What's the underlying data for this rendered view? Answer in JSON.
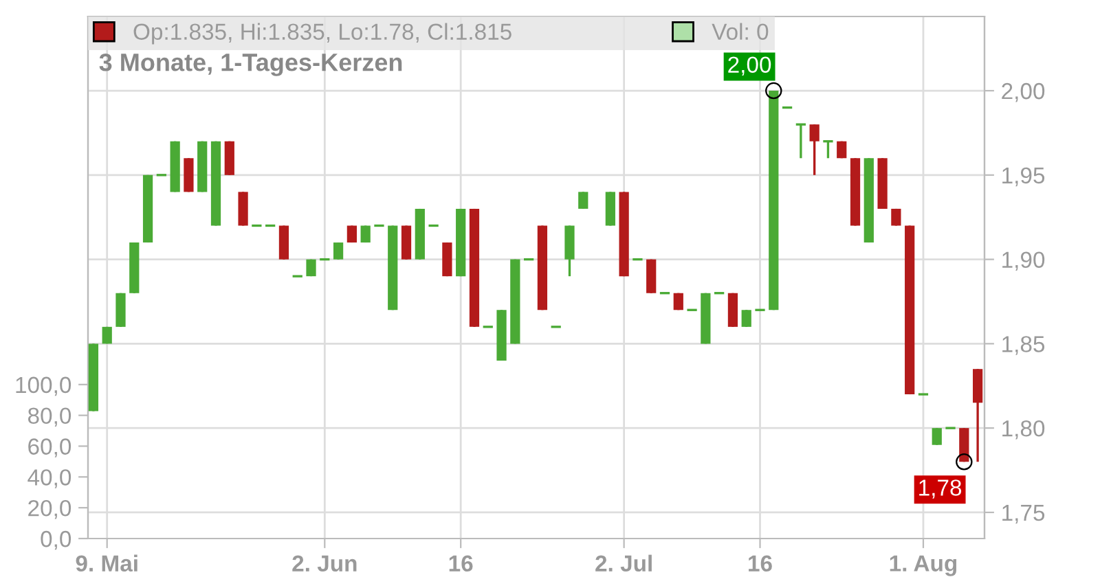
{
  "chart_data": {
    "type": "candlestick",
    "title": "3 Monate, 1-Tages-Kerzen",
    "categories": [
      null,
      "9. Mai",
      null,
      null,
      null,
      null,
      null,
      null,
      null,
      null,
      null,
      null,
      null,
      null,
      null,
      null,
      null,
      "2. Jun",
      null,
      null,
      null,
      null,
      null,
      null,
      null,
      null,
      null,
      "16",
      null,
      null,
      null,
      null,
      null,
      null,
      null,
      null,
      null,
      null,
      null,
      "2. Jul",
      null,
      null,
      null,
      null,
      null,
      null,
      null,
      null,
      null,
      "16",
      null,
      null,
      null,
      null,
      null,
      null,
      null,
      null,
      null,
      null,
      null,
      "1. Aug",
      null,
      null,
      null,
      null
    ],
    "series": [
      {
        "name": "Op:1.835, Hi:1.835, Lo:1.78, Cl:1.815",
        "color": "#b31b1b",
        "colors": [
          "#4aaa35",
          "#4aaa35",
          "#4aaa35",
          "#4aaa35",
          "#4aaa35",
          "#4aaa35",
          "#4aaa35",
          "#b31b1b",
          "#4aaa35",
          "#4aaa35",
          "#b31b1b",
          "#b31b1b",
          "#4aaa35",
          "#4aaa35",
          "#b31b1b",
          "#4aaa35",
          "#4aaa35",
          "#4aaa35",
          "#4aaa35",
          "#b31b1b",
          "#4aaa35",
          "#4aaa35",
          "#4aaa35",
          "#b31b1b",
          "#4aaa35",
          "#4aaa35",
          "#b31b1b",
          "#4aaa35",
          "#b31b1b",
          "#4aaa35",
          "#4aaa35",
          "#4aaa35",
          "#4aaa35",
          "#b31b1b",
          "#4aaa35",
          "#4aaa35",
          "#4aaa35",
          null,
          "#4aaa35",
          "#b31b1b",
          "#4aaa35",
          "#b31b1b",
          "#4aaa35",
          "#b31b1b",
          "#4aaa35",
          "#4aaa35",
          "#4aaa35",
          "#b31b1b",
          "#4aaa35",
          "#4aaa35",
          "#4aaa35",
          "#4aaa35",
          "#4aaa35",
          "#b31b1b",
          "#4aaa35",
          "#b31b1b",
          "#b31b1b",
          "#4aaa35",
          "#b31b1b",
          "#b31b1b",
          "#b31b1b",
          "#4aaa35",
          "#4aaa35",
          "#4aaa35",
          "#b31b1b",
          "#b31b1b"
        ],
        "ohlc": [
          [
            1.81,
            1.85,
            1.81,
            1.85
          ],
          [
            1.85,
            1.86,
            1.85,
            1.86
          ],
          [
            1.86,
            1.88,
            1.86,
            1.88
          ],
          [
            1.88,
            1.91,
            1.88,
            1.91
          ],
          [
            1.91,
            1.95,
            1.91,
            1.95
          ],
          [
            1.95,
            1.95,
            1.95,
            1.95
          ],
          [
            1.94,
            1.97,
            1.94,
            1.97
          ],
          [
            1.96,
            1.96,
            1.94,
            1.94
          ],
          [
            1.94,
            1.97,
            1.94,
            1.97
          ],
          [
            1.92,
            1.97,
            1.92,
            1.97
          ],
          [
            1.97,
            1.97,
            1.95,
            1.95
          ],
          [
            1.94,
            1.94,
            1.92,
            1.92
          ],
          [
            1.92,
            1.92,
            1.92,
            1.92
          ],
          [
            1.92,
            1.92,
            1.92,
            1.92
          ],
          [
            1.92,
            1.92,
            1.9,
            1.9
          ],
          [
            1.89,
            1.89,
            1.89,
            1.89
          ],
          [
            1.89,
            1.9,
            1.89,
            1.9
          ],
          [
            1.9,
            1.9,
            1.9,
            1.9
          ],
          [
            1.9,
            1.91,
            1.9,
            1.91
          ],
          [
            1.92,
            1.92,
            1.91,
            1.91
          ],
          [
            1.91,
            1.92,
            1.91,
            1.92
          ],
          [
            1.92,
            1.92,
            1.92,
            1.92
          ],
          [
            1.87,
            1.92,
            1.87,
            1.92
          ],
          [
            1.92,
            1.92,
            1.9,
            1.9
          ],
          [
            1.9,
            1.93,
            1.9,
            1.93
          ],
          [
            1.92,
            1.92,
            1.92,
            1.92
          ],
          [
            1.91,
            1.91,
            1.89,
            1.89
          ],
          [
            1.89,
            1.93,
            1.89,
            1.93
          ],
          [
            1.93,
            1.93,
            1.86,
            1.86
          ],
          [
            1.86,
            1.86,
            1.86,
            1.86
          ],
          [
            1.84,
            1.87,
            1.84,
            1.87
          ],
          [
            1.85,
            1.9,
            1.85,
            1.9
          ],
          [
            1.9,
            1.9,
            1.9,
            1.9
          ],
          [
            1.92,
            1.92,
            1.87,
            1.87
          ],
          [
            1.86,
            1.86,
            1.86,
            1.86
          ],
          [
            1.9,
            1.92,
            1.89,
            1.92
          ],
          [
            1.93,
            1.94,
            1.93,
            1.94
          ],
          null,
          [
            1.92,
            1.94,
            1.92,
            1.94
          ],
          [
            1.94,
            1.94,
            1.89,
            1.89
          ],
          [
            1.9,
            1.9,
            1.9,
            1.9
          ],
          [
            1.9,
            1.9,
            1.88,
            1.88
          ],
          [
            1.88,
            1.88,
            1.88,
            1.88
          ],
          [
            1.88,
            1.88,
            1.87,
            1.87
          ],
          [
            1.87,
            1.87,
            1.87,
            1.87
          ],
          [
            1.85,
            1.88,
            1.85,
            1.88
          ],
          [
            1.88,
            1.88,
            1.88,
            1.88
          ],
          [
            1.88,
            1.88,
            1.86,
            1.86
          ],
          [
            1.86,
            1.87,
            1.86,
            1.87
          ],
          [
            1.87,
            1.87,
            1.87,
            1.87
          ],
          [
            1.87,
            2.0,
            1.87,
            2.0
          ],
          [
            1.99,
            1.99,
            1.99,
            1.99
          ],
          [
            1.98,
            1.98,
            1.96,
            1.98
          ],
          [
            1.98,
            1.98,
            1.95,
            1.97
          ],
          [
            1.97,
            1.97,
            1.96,
            1.97
          ],
          [
            1.97,
            1.97,
            1.96,
            1.96
          ],
          [
            1.96,
            1.96,
            1.92,
            1.92
          ],
          [
            1.91,
            1.96,
            1.91,
            1.96
          ],
          [
            1.96,
            1.96,
            1.93,
            1.93
          ],
          [
            1.93,
            1.93,
            1.92,
            1.92
          ],
          [
            1.92,
            1.92,
            1.82,
            1.82
          ],
          [
            1.82,
            1.82,
            1.82,
            1.82
          ],
          [
            1.79,
            1.8,
            1.79,
            1.8
          ],
          [
            1.8,
            1.8,
            1.8,
            1.8
          ],
          [
            1.8,
            1.8,
            1.78,
            1.78
          ],
          [
            1.835,
            1.835,
            1.78,
            1.815
          ]
        ]
      },
      {
        "name": "Vol: 0",
        "type": "bar",
        "axis": "y2",
        "color": "#aee0a8",
        "values": [
          0,
          0,
          0,
          0,
          0,
          0,
          0,
          0,
          0,
          0,
          0,
          0,
          0,
          0,
          0,
          0,
          0,
          0,
          0,
          0,
          0,
          0,
          0,
          0,
          0,
          0,
          0,
          0,
          0,
          0,
          0,
          0,
          0,
          0,
          0,
          0,
          0,
          null,
          0,
          0,
          0,
          0,
          0,
          0,
          0,
          0,
          0,
          0,
          0,
          0,
          0,
          0,
          0,
          0,
          0,
          0,
          0,
          0,
          0,
          0,
          0,
          0,
          0,
          0,
          0,
          0
        ]
      }
    ],
    "ylim": [
      1.7345,
      2.044
    ],
    "yticks": [
      {
        "value": 1.75,
        "label": "1,75"
      },
      {
        "value": 1.8,
        "label": "1,80"
      },
      {
        "value": 1.85,
        "label": "1,85"
      },
      {
        "value": 1.9,
        "label": "1,90"
      },
      {
        "value": 1.95,
        "label": "1,95"
      },
      {
        "value": 2.0,
        "label": "2,00"
      }
    ],
    "y2lim": [
      0,
      339
    ],
    "y2ticks": [
      {
        "value": 0,
        "label": "0,0"
      },
      {
        "value": 20,
        "label": "20,0"
      },
      {
        "value": 40,
        "label": "40,0"
      },
      {
        "value": 60,
        "label": "60,0"
      },
      {
        "value": 80,
        "label": "80,0"
      },
      {
        "value": 100,
        "label": "100,0"
      }
    ],
    "annotations": [
      "2,00",
      "1,78"
    ],
    "grid": true,
    "legend": "top left"
  }
}
